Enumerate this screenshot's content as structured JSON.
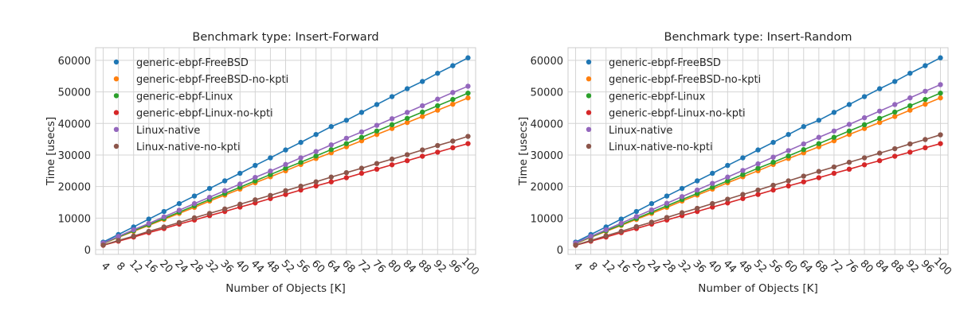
{
  "chart_data": [
    {
      "type": "line",
      "title": "Benchmark type: Insert-Forward",
      "xlabel": "Number of Objects [K]",
      "ylabel": "Time [usecs]",
      "x": [
        4,
        8,
        12,
        16,
        20,
        24,
        28,
        32,
        36,
        40,
        44,
        48,
        52,
        56,
        60,
        64,
        68,
        72,
        76,
        80,
        84,
        88,
        92,
        96,
        100
      ],
      "ylim": [
        -1500,
        64000
      ],
      "yticks": [
        0,
        10000,
        20000,
        30000,
        40000,
        50000,
        60000
      ],
      "grid": true,
      "legend_position": "top-left",
      "series": [
        {
          "name": "generic-ebpf-FreeBSD",
          "color": "#1f77b4",
          "values": [
            2400,
            4800,
            7200,
            9700,
            12100,
            14600,
            17000,
            19400,
            21800,
            24200,
            26700,
            29100,
            31600,
            34000,
            36500,
            39000,
            41000,
            43500,
            46000,
            48500,
            51000,
            53300,
            55900,
            58300,
            60800
          ]
        },
        {
          "name": "generic-ebpf-FreeBSD-no-kpti",
          "color": "#ff7f0e",
          "values": [
            1900,
            3900,
            5800,
            7700,
            9600,
            11500,
            13400,
            15400,
            17300,
            19200,
            21200,
            23100,
            25000,
            27000,
            28900,
            30700,
            32600,
            34500,
            36500,
            38400,
            40300,
            42200,
            44200,
            46100,
            48100
          ]
        },
        {
          "name": "generic-ebpf-Linux",
          "color": "#2ca02c",
          "values": [
            2000,
            4000,
            6000,
            7900,
            9900,
            11900,
            13900,
            15900,
            17800,
            19800,
            21800,
            23800,
            25800,
            27700,
            29700,
            31700,
            33600,
            35600,
            37600,
            39600,
            41600,
            43600,
            45600,
            47600,
            49600
          ]
        },
        {
          "name": "generic-ebpf-Linux-no-kpti",
          "color": "#d62728",
          "values": [
            1400,
            2700,
            4000,
            5400,
            6700,
            8100,
            9400,
            10800,
            12100,
            13500,
            14800,
            16200,
            17500,
            18900,
            20200,
            21500,
            22800,
            24200,
            25500,
            26900,
            28200,
            29600,
            30900,
            32300,
            33600
          ]
        },
        {
          "name": "Linux-native",
          "color": "#9467bd",
          "values": [
            2100,
            4200,
            6300,
            8300,
            10400,
            12500,
            14600,
            16600,
            18700,
            20800,
            22900,
            24900,
            27000,
            29100,
            31100,
            33200,
            35300,
            37300,
            39400,
            41500,
            43500,
            45600,
            47700,
            49800,
            51800
          ]
        },
        {
          "name": "Linux-native-no-kpti",
          "color": "#8c564b",
          "values": [
            1450,
            2900,
            4300,
            5800,
            7200,
            8600,
            10100,
            11500,
            12900,
            14400,
            15800,
            17200,
            18700,
            20100,
            21500,
            23000,
            24400,
            25800,
            27300,
            28700,
            30100,
            31600,
            33000,
            34400,
            35900
          ]
        }
      ]
    },
    {
      "type": "line",
      "title": "Benchmark type: Insert-Random",
      "xlabel": "Number of Objects [K]",
      "ylabel": "Time [usecs]",
      "x": [
        4,
        8,
        12,
        16,
        20,
        24,
        28,
        32,
        36,
        40,
        44,
        48,
        52,
        56,
        60,
        64,
        68,
        72,
        76,
        80,
        84,
        88,
        92,
        96,
        100
      ],
      "ylim": [
        -1500,
        64000
      ],
      "yticks": [
        0,
        10000,
        20000,
        30000,
        40000,
        50000,
        60000
      ],
      "grid": true,
      "legend_position": "top-left",
      "series": [
        {
          "name": "generic-ebpf-FreeBSD",
          "color": "#1f77b4",
          "values": [
            2400,
            4800,
            7200,
            9700,
            12100,
            14600,
            17000,
            19400,
            21800,
            24200,
            26700,
            29100,
            31600,
            34000,
            36500,
            39000,
            41000,
            43500,
            46000,
            48500,
            51000,
            53300,
            55900,
            58300,
            60800
          ]
        },
        {
          "name": "generic-ebpf-FreeBSD-no-kpti",
          "color": "#ff7f0e",
          "values": [
            1900,
            3900,
            5800,
            7700,
            9600,
            11500,
            13400,
            15400,
            17300,
            19200,
            21200,
            23100,
            25000,
            27000,
            28900,
            30700,
            32600,
            34500,
            36500,
            38400,
            40300,
            42200,
            44200,
            46100,
            48100
          ]
        },
        {
          "name": "generic-ebpf-Linux",
          "color": "#2ca02c",
          "values": [
            2000,
            4000,
            6000,
            7900,
            9900,
            11900,
            13900,
            15900,
            17800,
            19800,
            21800,
            23800,
            25800,
            27700,
            29700,
            31700,
            33600,
            35600,
            37600,
            39600,
            41600,
            43600,
            45600,
            47600,
            49600
          ]
        },
        {
          "name": "generic-ebpf-Linux-no-kpti",
          "color": "#d62728",
          "values": [
            1400,
            2700,
            4000,
            5400,
            6700,
            8100,
            9400,
            10800,
            12100,
            13500,
            14800,
            16200,
            17500,
            18900,
            20200,
            21500,
            22800,
            24200,
            25500,
            26900,
            28200,
            29600,
            30900,
            32300,
            33600
          ]
        },
        {
          "name": "Linux-native",
          "color": "#9467bd",
          "values": [
            2100,
            4200,
            6300,
            8400,
            10500,
            12600,
            14700,
            16800,
            18900,
            21000,
            23000,
            25100,
            27200,
            29300,
            31400,
            33500,
            35600,
            37600,
            39700,
            41800,
            43900,
            46000,
            48100,
            50200,
            52300
          ]
        },
        {
          "name": "Linux-native-no-kpti",
          "color": "#8c564b",
          "values": [
            1450,
            2900,
            4400,
            5800,
            7300,
            8700,
            10200,
            11700,
            13100,
            14600,
            16000,
            17500,
            18900,
            20400,
            21800,
            23300,
            24800,
            26200,
            27700,
            29100,
            30600,
            32000,
            33500,
            34900,
            36400
          ]
        }
      ]
    }
  ]
}
